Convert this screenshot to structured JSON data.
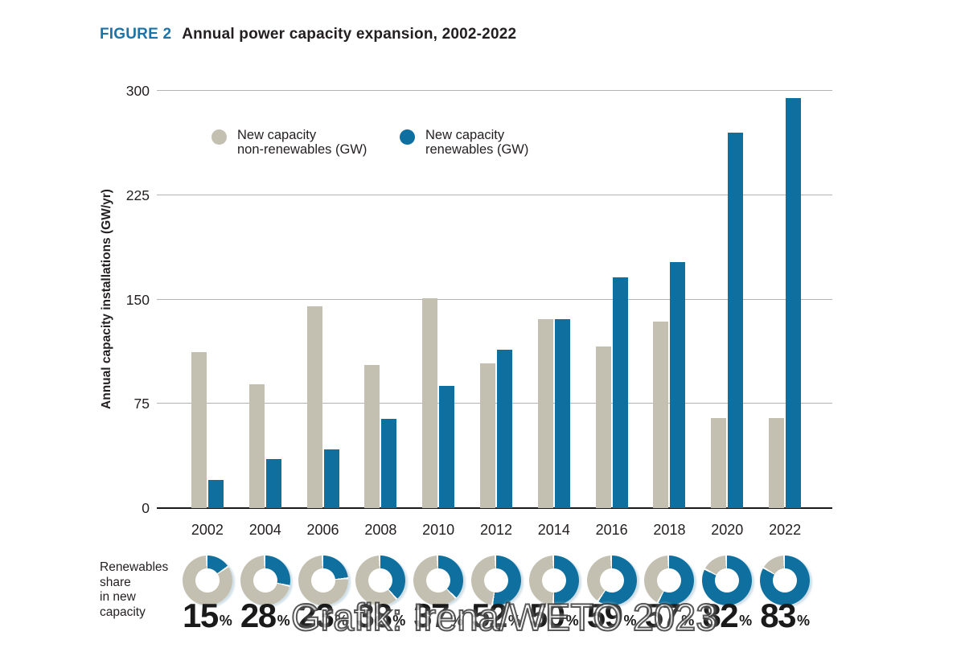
{
  "title": {
    "figure_label": "FIGURE 2",
    "text": "Annual power capacity expansion, 2002-2022"
  },
  "colors": {
    "figure_label_blue": "#1b74a8",
    "text_dark": "#231f20",
    "bar_non_renewables": "#c4c0b1",
    "bar_renewables": "#0f6f9e",
    "gridline": "#b2b2b2",
    "axis_line": "#1a1a1a",
    "donut_gap": "#ffffff"
  },
  "legend": {
    "items": [
      {
        "line1": "New capacity",
        "line2": "non-renewables (GW)",
        "series": "non_renewables"
      },
      {
        "line1": "New capacity",
        "line2": "renewables (GW)",
        "series": "renewables"
      }
    ]
  },
  "chart_data": {
    "type": "bar",
    "title": "Annual power capacity expansion, 2002-2022",
    "categories": [
      "2002",
      "2004",
      "2006",
      "2008",
      "2010",
      "2012",
      "2014",
      "2016",
      "2018",
      "2020",
      "2022"
    ],
    "series": [
      {
        "name": "New capacity non-renewables (GW)",
        "color": "#c4c0b1",
        "values": [
          112,
          89,
          145,
          103,
          151,
          104,
          136,
          116,
          134,
          65,
          65
        ]
      },
      {
        "name": "New capacity renewables (GW)",
        "color": "#0f6f9e",
        "values": [
          20,
          35,
          42,
          64,
          88,
          114,
          136,
          166,
          177,
          270,
          295
        ]
      }
    ],
    "xlabel": "",
    "ylabel": "Annual capacity installations (GW/yr)",
    "ylim": [
      0,
      300
    ],
    "yticks": [
      0,
      75,
      150,
      225,
      300
    ],
    "grid": true,
    "legend_position": "top-inside"
  },
  "renewables_share": {
    "label_lines": [
      "Renewables",
      "share",
      "in new",
      "capacity"
    ],
    "values": [
      15,
      28,
      23,
      38,
      37,
      52,
      50,
      59,
      57,
      82,
      83
    ],
    "unit": "%"
  },
  "watermark": {
    "text": "Grafik: Irena/WETO 2023"
  }
}
